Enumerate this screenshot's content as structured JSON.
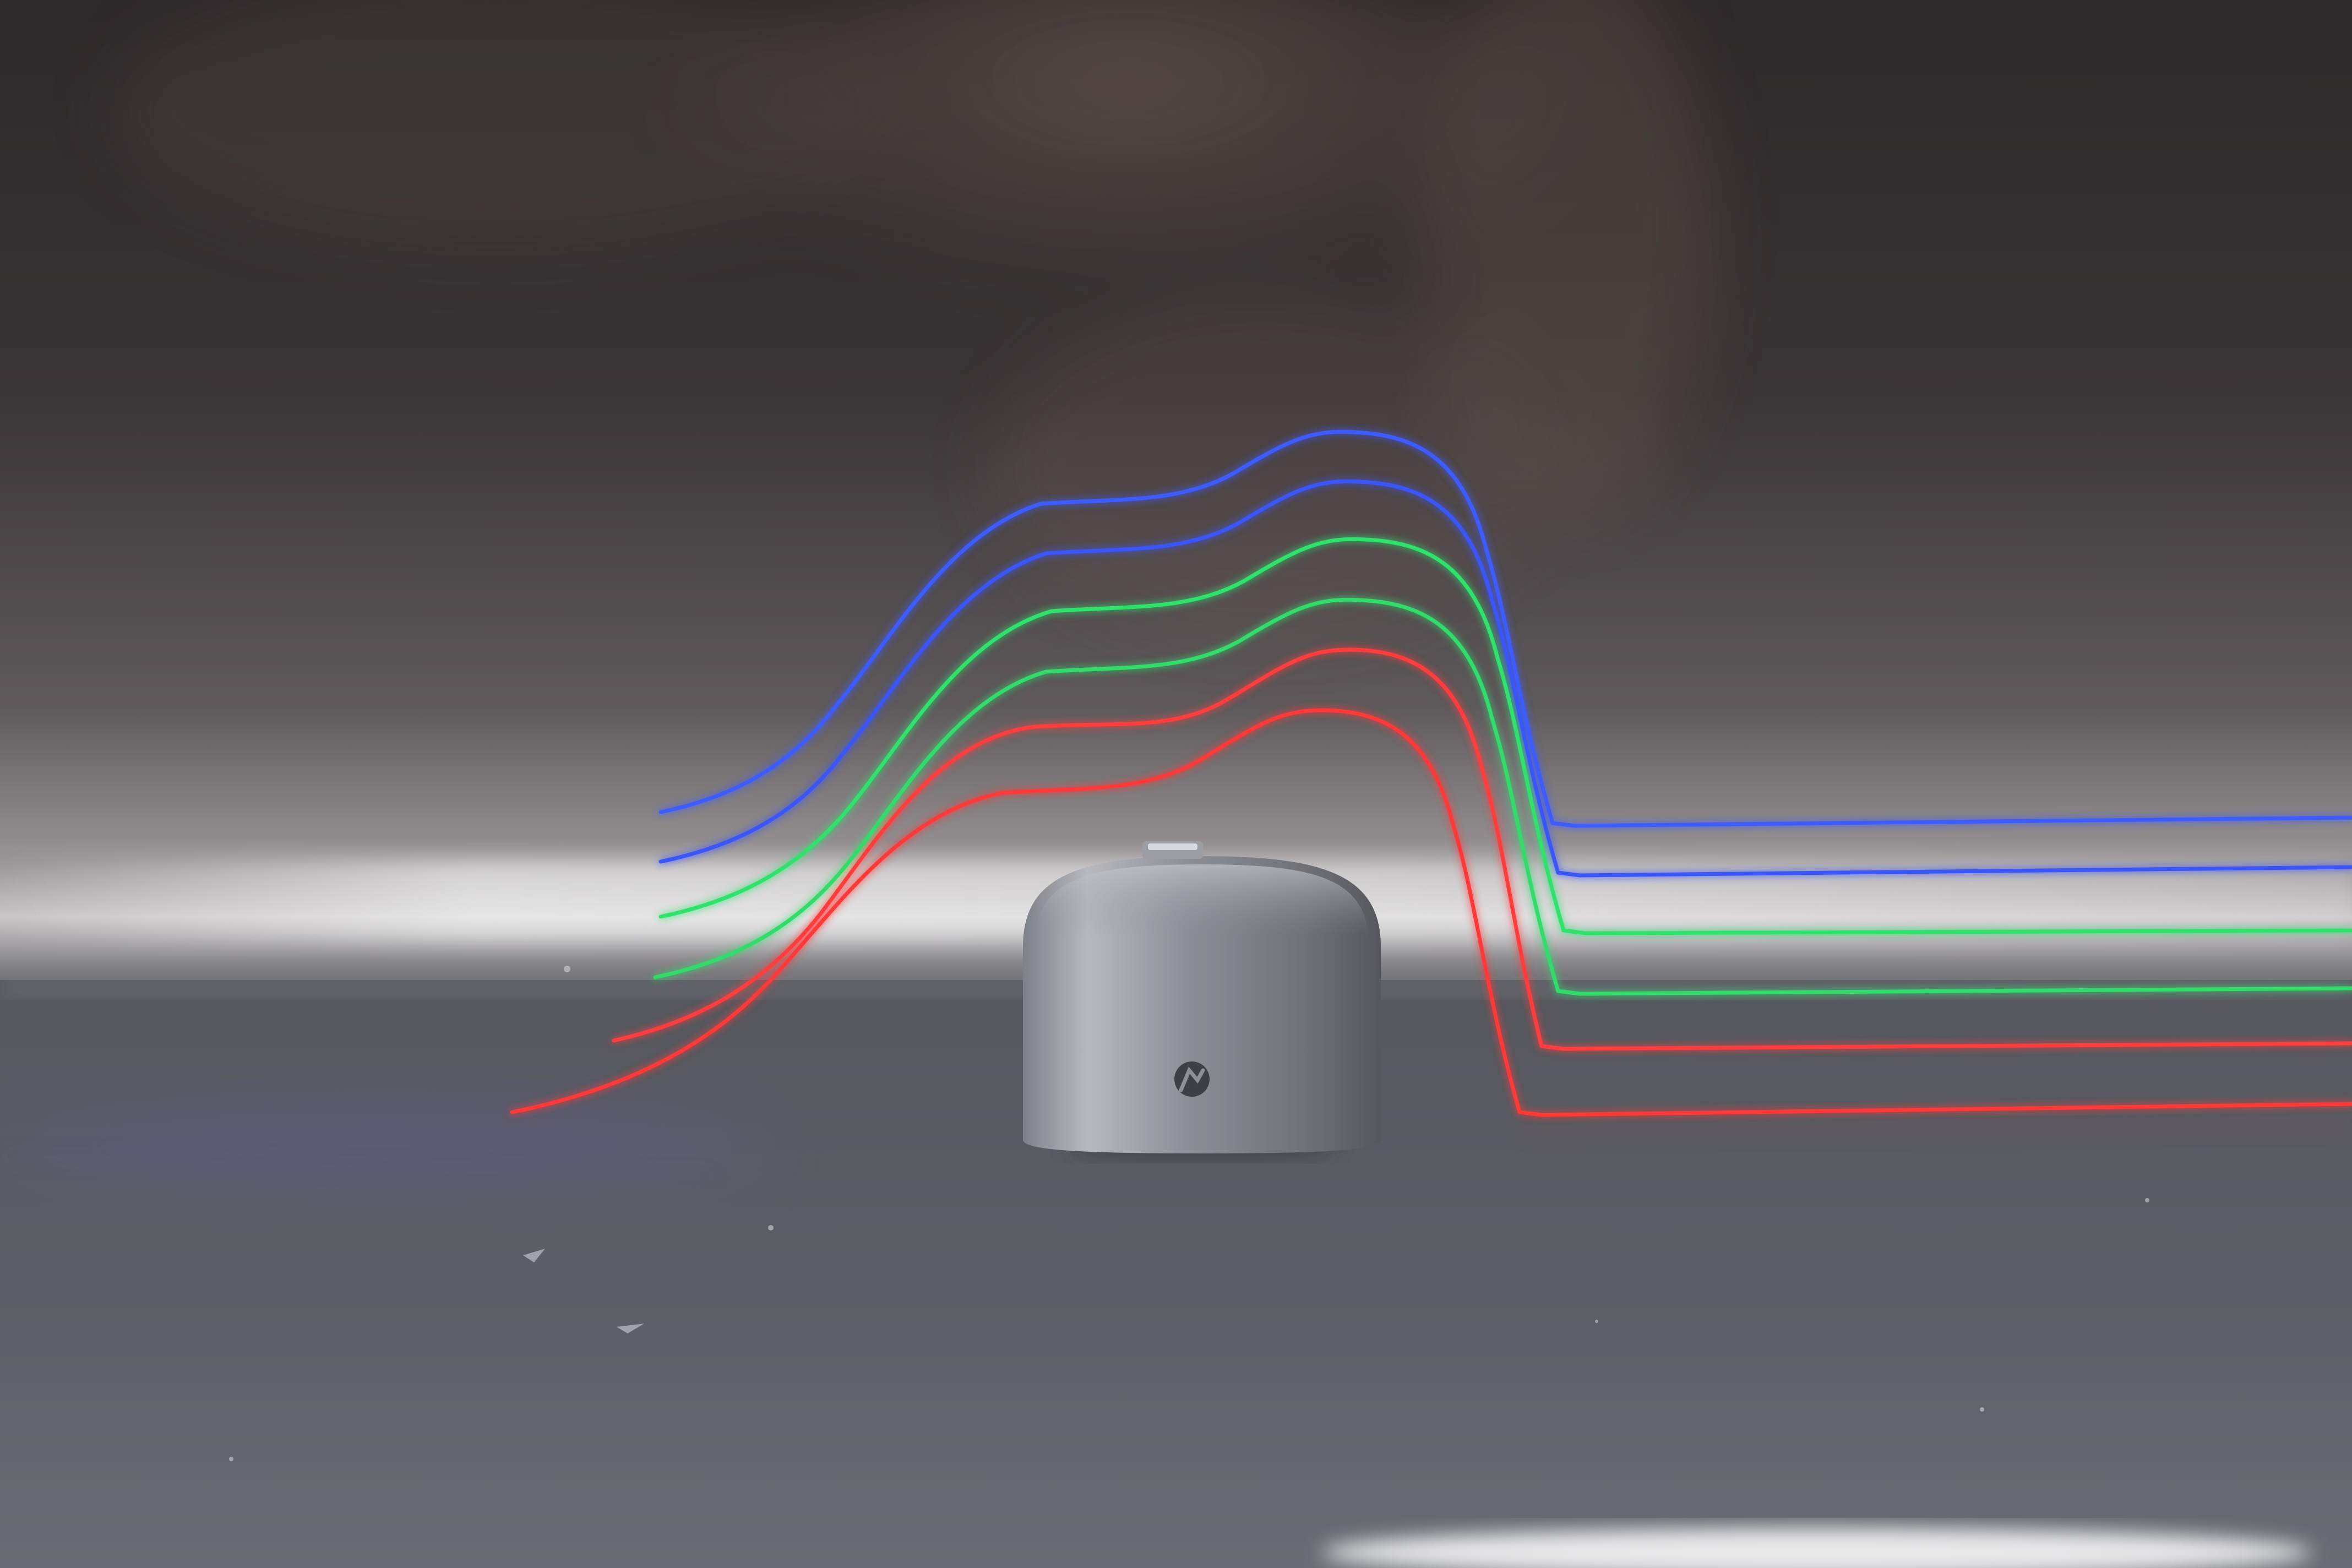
{
  "photo": {
    "subject": "aluminium-dome-sensor",
    "colors": {
      "backdrop_dark": "#1d1a1b",
      "backdrop_mid": "#4a4547",
      "backdrop_light": "#b9b6b8",
      "surface": "#56585d",
      "surface_light": "#7b7d82",
      "dome_light": "#b0b2b8",
      "dome_dark": "#5b5d63",
      "trail_blue": "#3d55ff",
      "trail_green": "#2ee06a",
      "trail_red": "#ff3a3a",
      "reflection": "#ffffff"
    },
    "trails": [
      {
        "name": "blue",
        "count": 2
      },
      {
        "name": "green",
        "count": 2
      },
      {
        "name": "red",
        "count": 2
      }
    ]
  }
}
